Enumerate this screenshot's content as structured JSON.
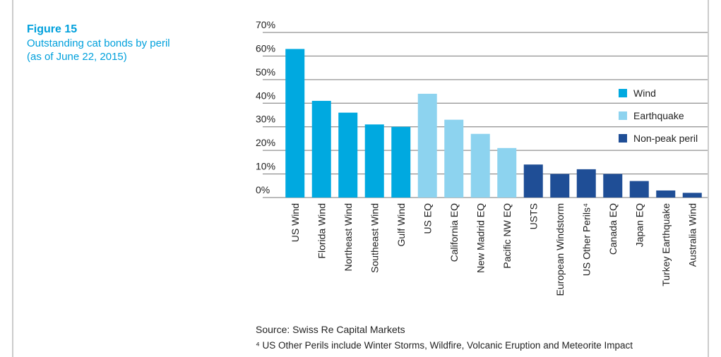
{
  "chart_data": {
    "type": "bar",
    "title": "Figure 15",
    "subtitle": [
      "Outstanding cat bonds by peril",
      "(as of June 22, 2015)"
    ],
    "categories": [
      "US Wind",
      "Florida Wind",
      "Northeast Wind",
      "Southeast Wind",
      "Gulf Wind",
      "US EQ",
      "California EQ",
      "New Madrid EQ",
      "Pacific NW EQ",
      "USTS",
      "European Windstorm",
      "US Other Perils⁴",
      "Canada EQ",
      "Japan EQ",
      "Turkey Earthquake",
      "Australia Wind"
    ],
    "series": [
      {
        "name": "Wind",
        "color": "#00a9e0",
        "values": [
          63,
          41,
          36,
          31,
          30,
          null,
          null,
          null,
          null,
          null,
          null,
          null,
          null,
          null,
          null,
          null
        ]
      },
      {
        "name": "Earthquake",
        "color": "#8dd3ef",
        "values": [
          null,
          null,
          null,
          null,
          null,
          44,
          33,
          27,
          21,
          null,
          null,
          null,
          null,
          null,
          null,
          null
        ]
      },
      {
        "name": "Non-peak peril",
        "color": "#1f4e96",
        "values": [
          null,
          null,
          null,
          null,
          null,
          null,
          null,
          null,
          null,
          14,
          10,
          12,
          10,
          7,
          3,
          2
        ]
      }
    ],
    "ylim": [
      0,
      70
    ],
    "yticks": [
      {
        "value": 0,
        "label": "0%"
      },
      {
        "value": 10,
        "label": "10%"
      },
      {
        "value": 20,
        "label": "20%"
      },
      {
        "value": 30,
        "label": "30%"
      },
      {
        "value": 40,
        "label": "40%"
      },
      {
        "value": 50,
        "label": "50%"
      },
      {
        "value": 60,
        "label": "60%"
      },
      {
        "value": 70,
        "label": "70%"
      }
    ],
    "grid": true,
    "legend": "right",
    "notes": [
      "Source: Swiss Re Capital Markets",
      "⁴ US Other Perils include Winter Storms, Wildfire, Volcanic Eruption and Meteorite Impact"
    ]
  }
}
